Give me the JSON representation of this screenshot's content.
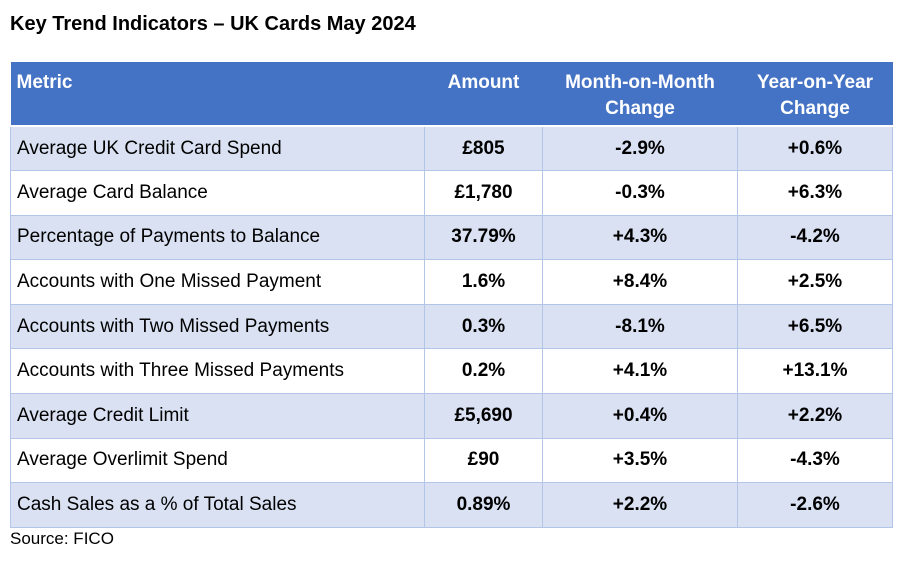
{
  "title": "Key Trend Indicators – UK Cards May 2024",
  "source": "Source: FICO",
  "colors": {
    "header_bg": "#4472c4",
    "band_bg": "#d9e1f2",
    "border": "#b4c6e7"
  },
  "chart_data": {
    "type": "table",
    "columns": [
      "Metric",
      "Amount",
      "Month-on-Month Change",
      "Year-on-Year Change"
    ],
    "rows": [
      [
        "Average UK Credit Card Spend",
        "£805",
        "-2.9%",
        "+0.6%"
      ],
      [
        "Average Card Balance",
        "£1,780",
        "-0.3%",
        "+6.3%"
      ],
      [
        "Percentage of Payments to Balance",
        "37.79%",
        "+4.3%",
        "-4.2%"
      ],
      [
        "Accounts with One Missed Payment",
        "1.6%",
        "+8.4%",
        "+2.5%"
      ],
      [
        "Accounts with Two Missed Payments",
        "0.3%",
        "-8.1%",
        "+6.5%"
      ],
      [
        "Accounts with Three Missed Payments",
        "0.2%",
        "+4.1%",
        "+13.1%"
      ],
      [
        "Average Credit Limit",
        "£5,690",
        "+0.4%",
        "+2.2%"
      ],
      [
        "Average Overlimit Spend",
        "£90",
        "+3.5%",
        "-4.3%"
      ],
      [
        "Cash Sales as a % of Total Sales",
        "0.89%",
        "+2.2%",
        "-2.6%"
      ]
    ]
  }
}
